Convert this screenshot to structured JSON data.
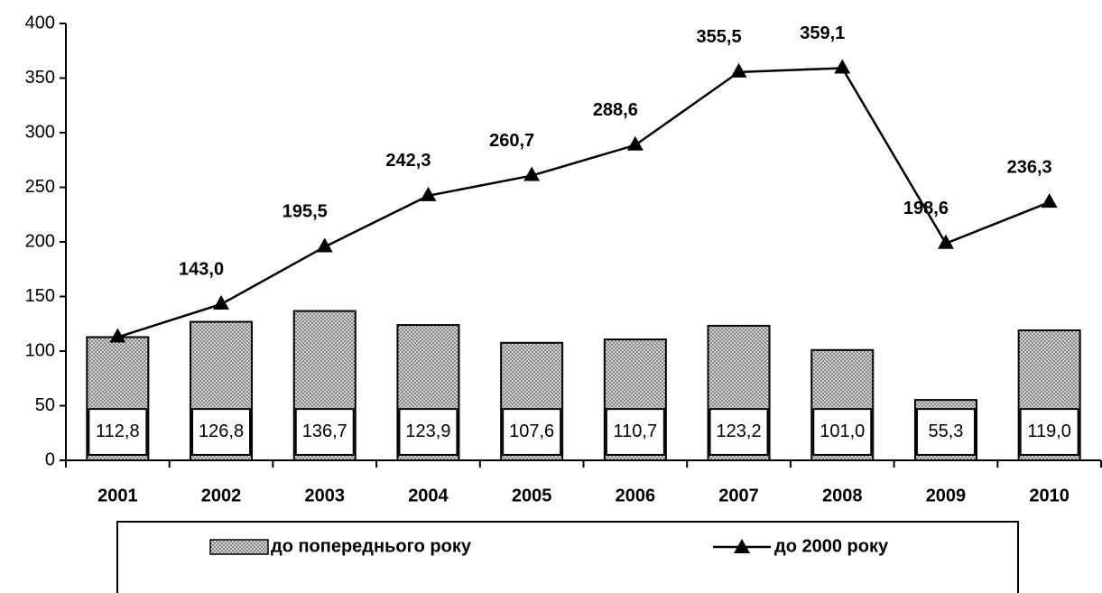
{
  "chart_data": {
    "type": "bar_line",
    "categories": [
      "2001",
      "2002",
      "2003",
      "2004",
      "2005",
      "2006",
      "2007",
      "2008",
      "2009",
      "2010"
    ],
    "series": [
      {
        "name": "до попереднього року",
        "type": "bar",
        "color": "#808080",
        "values": [
          112.8,
          126.8,
          136.7,
          123.9,
          107.6,
          110.7,
          123.2,
          101.0,
          55.3,
          119.0
        ],
        "value_labels": [
          "112,8",
          "126,8",
          "136,7",
          "123,9",
          "107,6",
          "110,7",
          "123,2",
          "101,0",
          "55,3",
          "119,0"
        ]
      },
      {
        "name": "до 2000 року",
        "type": "line",
        "color": "#000000",
        "values": [
          112.8,
          143.0,
          195.5,
          242.3,
          260.7,
          288.6,
          355.5,
          359.1,
          198.6,
          236.3
        ],
        "value_labels": [
          null,
          "143,0",
          "195,5",
          "242,3",
          "260,7",
          "288,6",
          "355,5",
          "359,1",
          "198,6",
          "236,3"
        ]
      }
    ],
    "ylim": [
      0,
      400
    ],
    "yticks": [
      0,
      50,
      100,
      150,
      200,
      250,
      300,
      350,
      400
    ],
    "legend": "bottom"
  }
}
